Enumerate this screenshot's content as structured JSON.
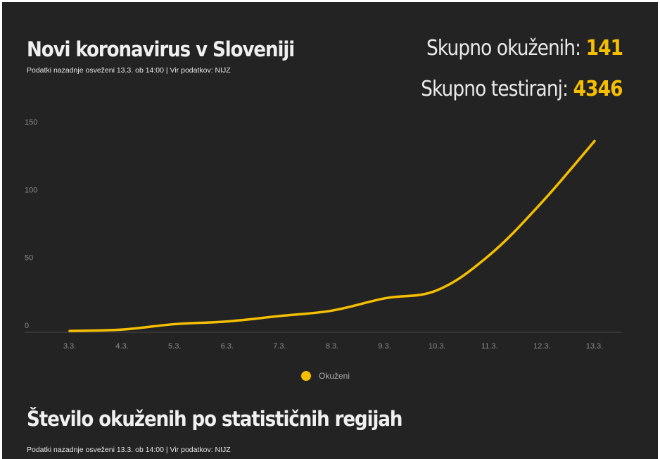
{
  "header": {
    "title": "Novi koronavirus v Sloveniji",
    "subtitle": "Podatki nazadnje osveženi 13.3. ob 14:00 | Vir podatkov: NIJZ"
  },
  "stats": {
    "infected_label": "Skupno okuženih: ",
    "infected_value": "141",
    "tested_label": "Skupno testiranj: ",
    "tested_value": "4346"
  },
  "chart_data": {
    "type": "line",
    "categories": [
      "3.3.",
      "4.3.",
      "5.3.",
      "6.3.",
      "7.3.",
      "8.3.",
      "9.3.",
      "10.3.",
      "11.3.",
      "12.3.",
      "13.3."
    ],
    "series": [
      {
        "name": "Okuženi",
        "values": [
          1,
          2,
          6,
          8,
          12,
          16,
          25,
          31,
          57,
          96,
          141
        ],
        "color": "#f5bf00"
      }
    ],
    "y_ticks": [
      0,
      50,
      100,
      150
    ],
    "ylim": [
      0,
      150
    ],
    "grid": false,
    "legend_position": "bottom-center"
  },
  "section": {
    "title": "Število okuženih po statističnih regijah",
    "subtitle": "Podatki nazadnje osveženi 13.3. ob 14:00 | Vir podatkov: NIJZ"
  }
}
